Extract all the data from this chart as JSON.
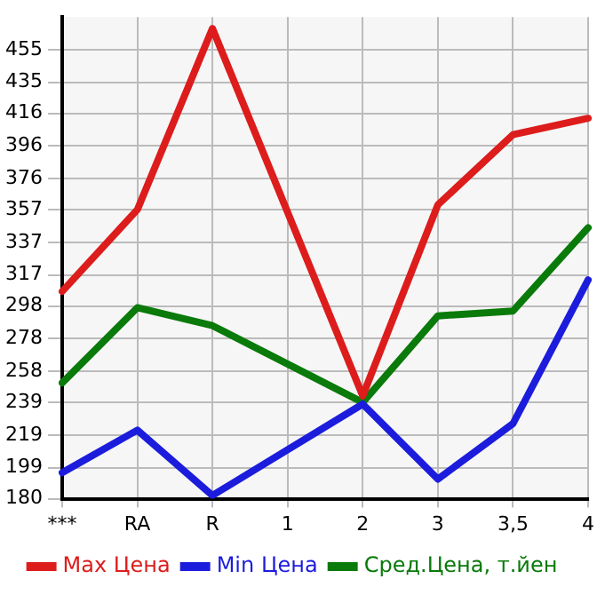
{
  "chart_data": {
    "type": "line",
    "categories": [
      "***",
      "RA",
      "R",
      "1",
      "2",
      "3",
      "3,5",
      "4"
    ],
    "series": [
      {
        "name": "Max Цена",
        "color": "#dd1c1c",
        "values": [
          307,
          357,
          468,
          null,
          243,
          360,
          403,
          413
        ]
      },
      {
        "name": "Min Цена",
        "color": "#1c1cdd",
        "values": [
          196,
          222,
          182,
          null,
          238,
          192,
          226,
          314
        ]
      },
      {
        "name": "Сред.Цена, т.йен",
        "color": "#0a7a0a",
        "values": [
          251,
          297,
          286,
          null,
          239,
          292,
          295,
          346
        ]
      }
    ],
    "ylim": [
      180,
      475
    ],
    "yticks": [
      180,
      199,
      219,
      239,
      258,
      278,
      298,
      317,
      337,
      357,
      376,
      396,
      416,
      435,
      455
    ],
    "grid": true,
    "legend": "bottom",
    "marker": "none",
    "line_style": "solid"
  }
}
